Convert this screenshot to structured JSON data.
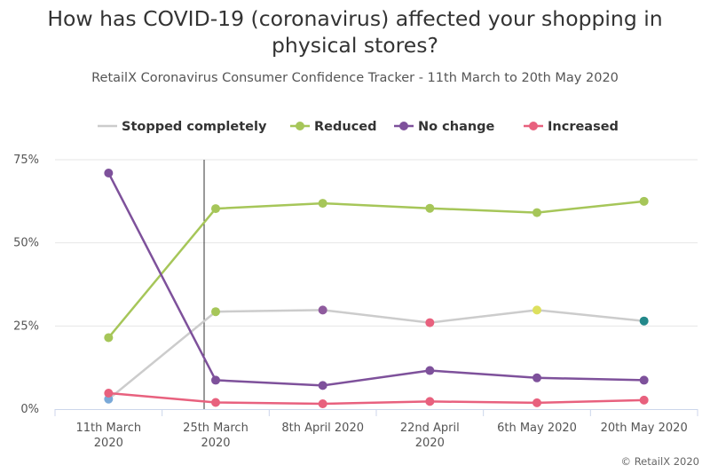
{
  "chart_data": {
    "type": "line",
    "title": "How has COVID-19 (coronavirus) affected your shopping in physical stores?",
    "subtitle": "RetailX Coronavirus Consumer Confidence Tracker - 11th March to 20th May 2020",
    "credit": "© RetailX 2020",
    "categories": [
      [
        "11th March",
        "2020"
      ],
      [
        "25th March",
        "2020"
      ],
      [
        "8th April 2020"
      ],
      [
        "22nd April",
        "2020"
      ],
      [
        "6th May 2020"
      ],
      [
        "20th May 2020"
      ]
    ],
    "y_ticks": [
      {
        "value": 0,
        "label": "0%"
      },
      {
        "value": 25,
        "label": "25%"
      },
      {
        "value": 50,
        "label": "50%"
      },
      {
        "value": 75,
        "label": "75%"
      }
    ],
    "ylim": [
      0,
      75
    ],
    "legend_position": "top",
    "plot_line_at_category": "25th March 2020",
    "series": [
      {
        "name": "Stopped completely",
        "color": "#cccccc",
        "values": [
          3,
          29.3,
          29.8,
          26,
          29.8,
          26.5
        ],
        "point_colors": [
          "#7aa9d8",
          "#a6c659",
          "#8f5b9e",
          "#e8617e",
          "#dde05e",
          "#23888a"
        ]
      },
      {
        "name": "Reduced",
        "color": "#a6c659",
        "values": [
          21.5,
          60.3,
          61.9,
          60.4,
          59.1,
          62.5
        ]
      },
      {
        "name": "No change",
        "color": "#7e519b",
        "values": [
          71,
          8.7,
          7.1,
          11.6,
          9.4,
          8.7
        ]
      },
      {
        "name": "Increased",
        "color": "#e8617e",
        "values": [
          4.8,
          2,
          1.6,
          2.3,
          1.9,
          2.7
        ]
      }
    ]
  }
}
